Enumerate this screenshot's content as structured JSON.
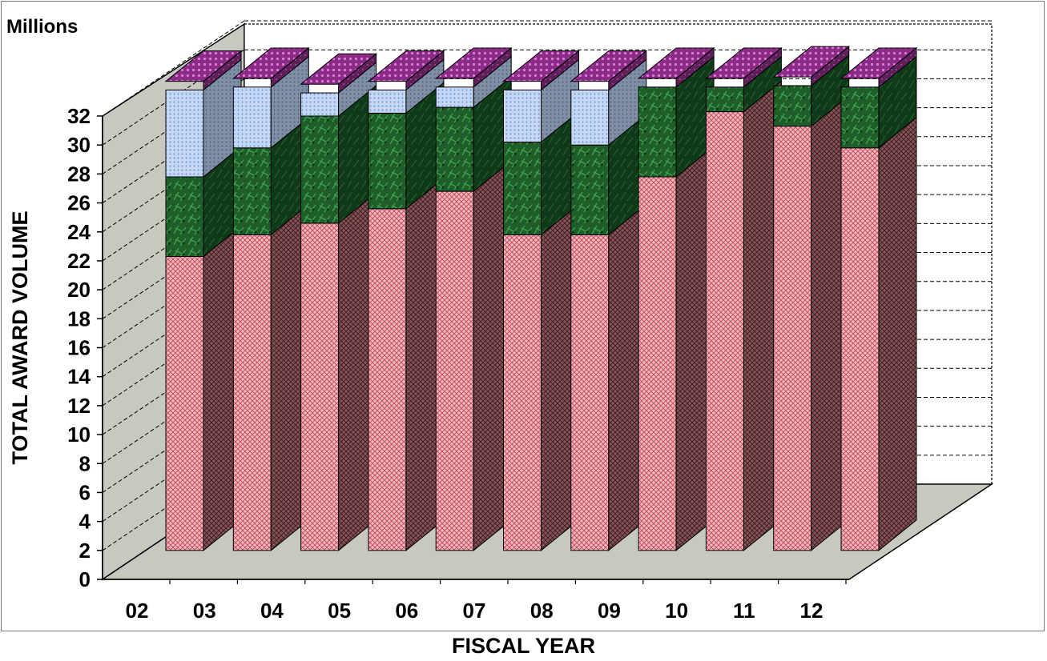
{
  "chart_data": {
    "type": "bar",
    "stacked": true,
    "three_d": true,
    "units_label": "Millions",
    "ylabel": "TOTAL AWARD VOLUME",
    "xlabel": "FISCAL YEAR",
    "ylim": [
      0,
      32
    ],
    "yticks": [
      0,
      2,
      4,
      6,
      8,
      10,
      12,
      14,
      16,
      18,
      20,
      22,
      24,
      26,
      28,
      30,
      32
    ],
    "categories": [
      "02",
      "03",
      "04",
      "05",
      "06",
      "07",
      "08",
      "09",
      "10",
      "11",
      "12"
    ],
    "legend": "none",
    "series": [
      {
        "color": "#e8909a",
        "pattern": "crosshatch",
        "values": [
          20.3,
          21.8,
          22.6,
          23.6,
          24.8,
          21.8,
          21.8,
          25.8,
          30.3,
          29.3,
          27.8
        ]
      },
      {
        "color": "#2f7a3a",
        "pattern": "foliage",
        "values": [
          5.5,
          6.0,
          7.4,
          6.6,
          5.8,
          6.4,
          6.2,
          6.2,
          1.7,
          2.8,
          4.2
        ]
      },
      {
        "color": "#a9c4ee",
        "pattern": "dots",
        "values": [
          6.0,
          4.2,
          1.6,
          1.6,
          1.4,
          3.6,
          3.8,
          0,
          0,
          0,
          0
        ]
      },
      {
        "color": "#a63f9a",
        "pattern": "dots",
        "values": [
          0.6,
          0.6,
          0.6,
          0.6,
          0.6,
          0.6,
          0.6,
          0.6,
          0.6,
          0.6,
          0.6
        ]
      }
    ]
  }
}
